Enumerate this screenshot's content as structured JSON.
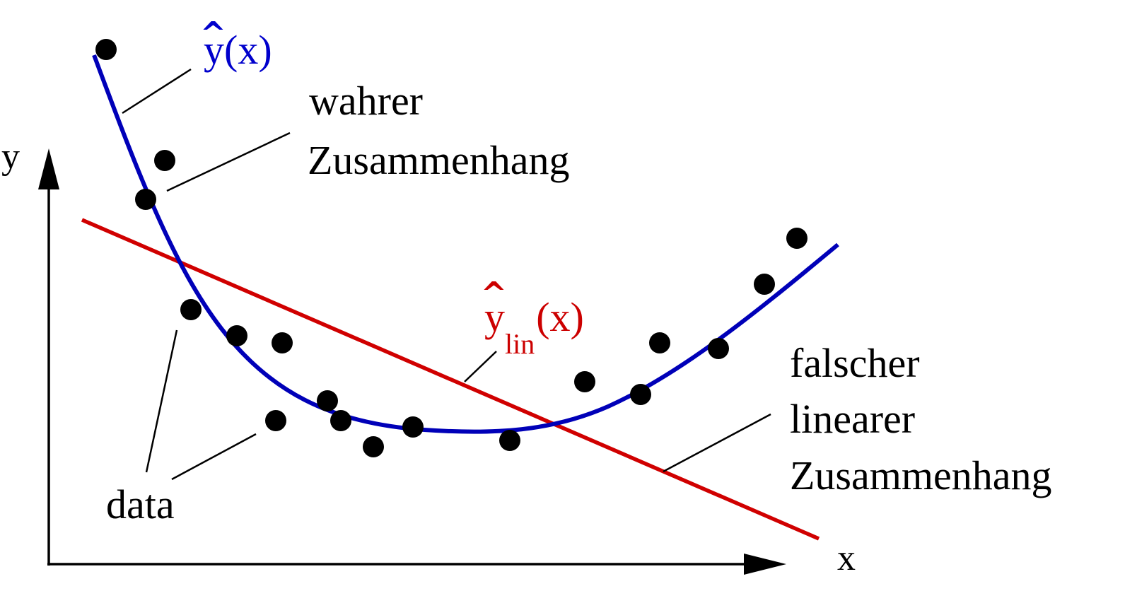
{
  "labels": {
    "axis_y": "y",
    "axis_x": "x",
    "yhat_hat": "^",
    "yhat_text": "y(x)",
    "true_line1": "wahrer",
    "true_line2": "Zusammenhang",
    "ylin_hat": "^",
    "ylin_y": "y",
    "ylin_sub": "lin",
    "ylin_arg": "(x)",
    "false_line1": "falscher",
    "false_line2": "linearer",
    "false_line3": "Zusammenhang",
    "data_label": "data"
  },
  "colors": {
    "true_curve": "#0000b8",
    "linear_fit": "#d00000",
    "points": "#000000",
    "text": "#000000"
  }
}
